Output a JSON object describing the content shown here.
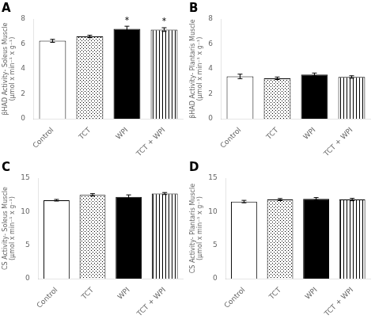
{
  "chart_data": [
    {
      "type": "bar",
      "title": "A",
      "ylabel": "βHAD Activity- Soleus Muscle\n(μmol x min⁻¹ x g⁻¹)",
      "categories": [
        "Control",
        "TCT",
        "WPI",
        "TCT + WPI"
      ],
      "values": [
        6.25,
        6.6,
        7.2,
        7.15
      ],
      "errors": [
        0.12,
        0.1,
        0.22,
        0.15
      ],
      "colors": [
        "white",
        "white",
        "black",
        "white"
      ],
      "ylim": [
        0,
        8
      ],
      "yticks": [
        0,
        2,
        4,
        6,
        8
      ],
      "grid": false,
      "annotations": [
        {
          "text": "*",
          "category": "WPI"
        },
        {
          "text": "*",
          "category": "TCT + WPI"
        }
      ]
    },
    {
      "type": "bar",
      "title": "B",
      "ylabel": "βHAD Activity- Plantaris Muscle\n(μmol x min⁻¹ x g⁻¹)",
      "categories": [
        "Control",
        "TCT",
        "WPI",
        "TCT + WPI"
      ],
      "values": [
        3.4,
        3.25,
        3.55,
        3.35
      ],
      "errors": [
        0.18,
        0.1,
        0.12,
        0.1
      ],
      "colors": [
        "white",
        "white",
        "black",
        "white"
      ],
      "ylim": [
        0,
        8
      ],
      "yticks": [
        0,
        2,
        4,
        6,
        8
      ],
      "grid": false
    },
    {
      "type": "bar",
      "title": "C",
      "ylabel": "CS Activity- Soleus Muscle\n(μmol x min⁻¹ x g⁻¹)",
      "categories": [
        "Control",
        "TCT",
        "WPI",
        "TCT + WPI"
      ],
      "values": [
        11.7,
        12.5,
        12.2,
        12.7
      ],
      "errors": [
        0.12,
        0.18,
        0.3,
        0.15
      ],
      "colors": [
        "white",
        "white",
        "black",
        "white"
      ],
      "ylim": [
        0,
        15
      ],
      "yticks": [
        0,
        5,
        10,
        15
      ],
      "grid": false
    },
    {
      "type": "bar",
      "title": "D",
      "ylabel": "CS Activity- Plantaris Muscle\n(μmol x min⁻¹ x g⁻¹)",
      "categories": [
        "Control",
        "TCT",
        "WPI",
        "TCT + WPI"
      ],
      "values": [
        11.5,
        11.8,
        11.9,
        11.8
      ],
      "errors": [
        0.18,
        0.15,
        0.2,
        0.18
      ],
      "colors": [
        "white",
        "white",
        "black",
        "white"
      ],
      "ylim": [
        0,
        15
      ],
      "yticks": [
        0,
        5,
        10,
        15
      ],
      "grid": false
    }
  ]
}
